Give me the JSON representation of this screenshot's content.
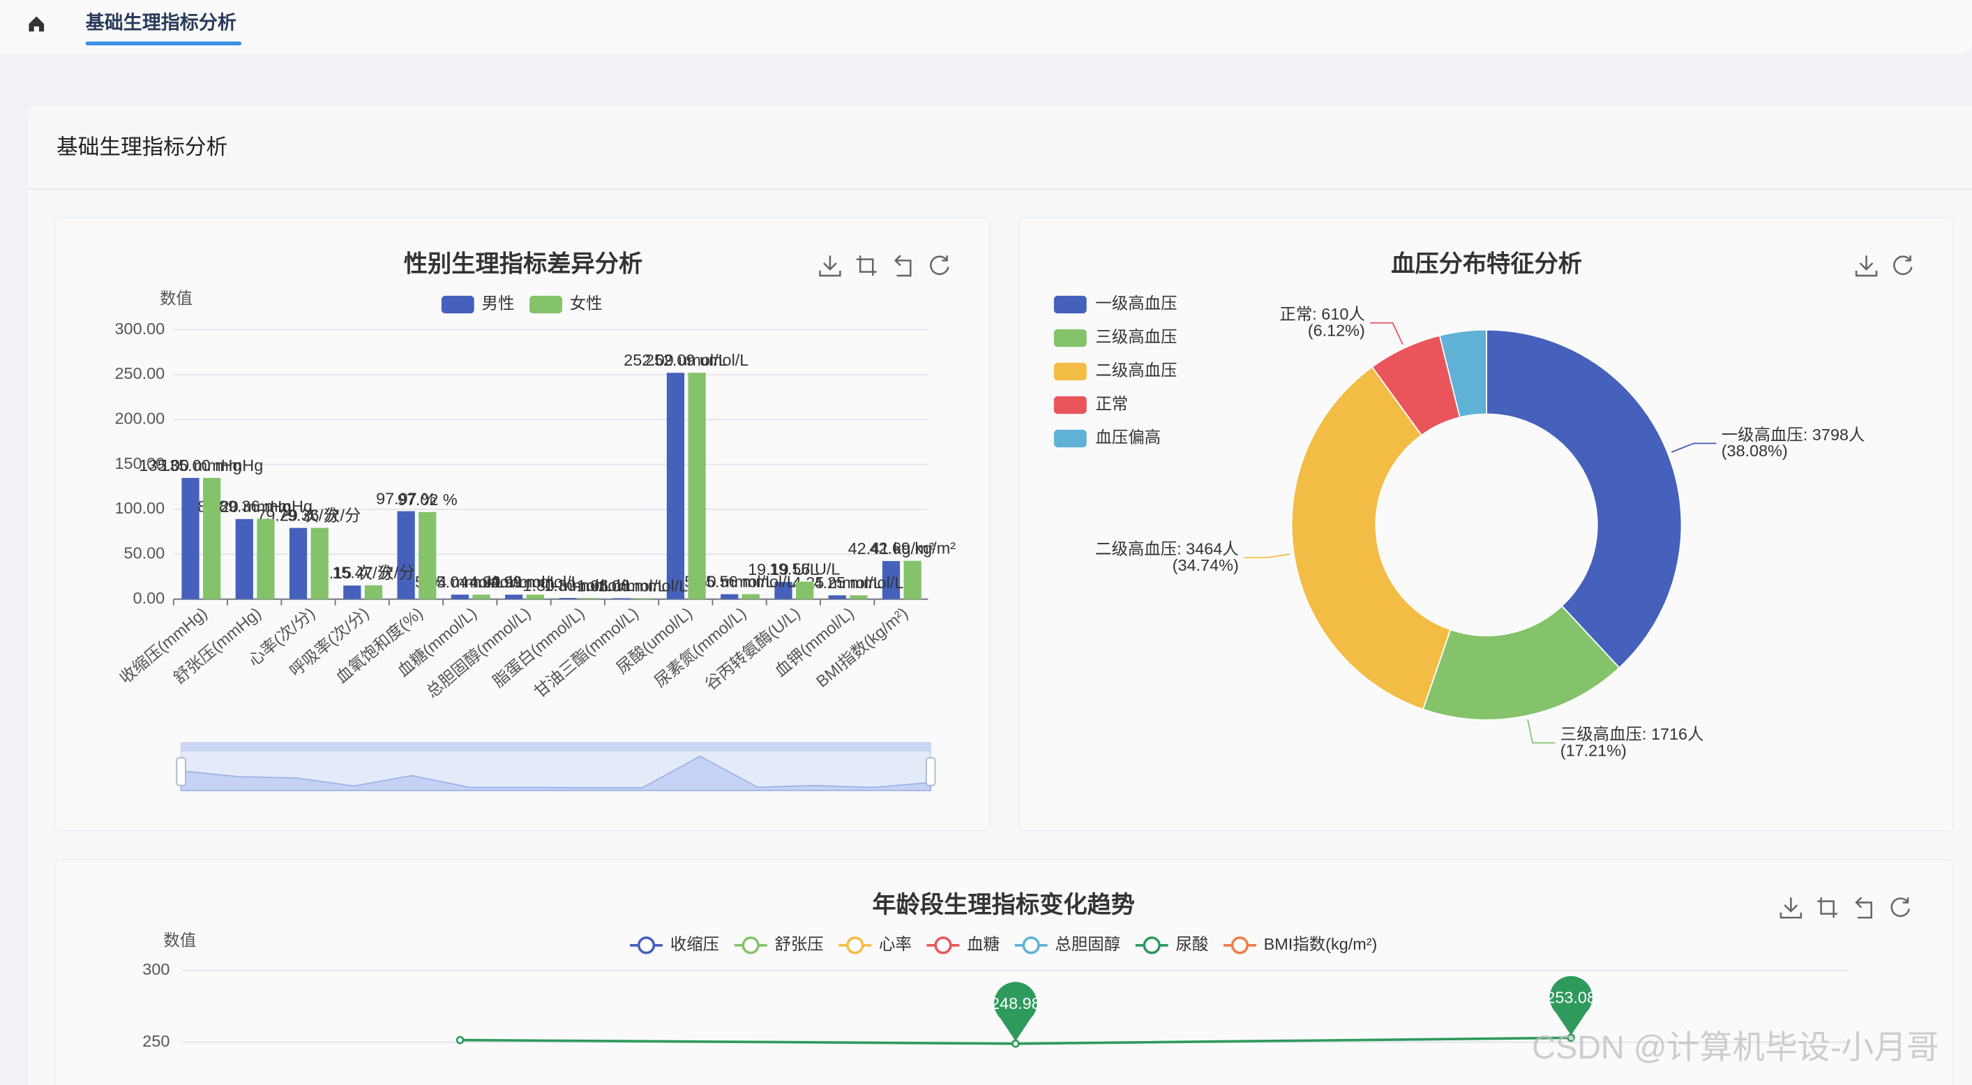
{
  "breadcrumb": "基础生理指标分析",
  "panel_title": "基础生理指标分析",
  "watermark": "CSDN @计算机毕设-小月哥",
  "chart_data": [
    {
      "type": "bar",
      "title": "性别生理指标差异分析",
      "y_axis_label": "数值",
      "categories": [
        "收缩压(mmHg)",
        "舒张压(mmHg)",
        "心率(次/分)",
        "呼吸率(次/分)",
        "血氧饱和度(%)",
        "血糖(mmol/L)",
        "总胆固醇(mmol/L)",
        "脂蛋白(mmol/L)",
        "甘油三酯(mmol/L)",
        "尿酸(umol/L)",
        "尿素氮(mmol/L)",
        "谷丙转氨酶(U/L)",
        "血钾(mmol/L)",
        "BMI指数(kg/m²)"
      ],
      "series": [
        {
          "name": "男性",
          "color": "#4561bb",
          "values": [
            135,
            89.2,
            79.29,
            15.15,
            97.97,
            5.04,
            4.99,
            1.3,
            1.06,
            252.09,
            5.5,
            19.19,
            4.25,
            42.41
          ],
          "value_labels": [
            "135.00 mmHg",
            "89.20 mmHg",
            "79.29 次/分",
            "15.15 次/分",
            "97.97 %",
            "5.04 mmol/L",
            "4.99 mmol/L",
            "1.30 mmol/L",
            "1.06 mmol/L",
            "252.09 umol/L",
            "5.50 mmol/L",
            "19.19 U/L",
            "4.25 mmol/L",
            "42.41 kg/m²"
          ]
        },
        {
          "name": "女性",
          "color": "#84c36a",
          "values": [
            135,
            89.36,
            79.36,
            15.47,
            97.02,
            5.04,
            4.99,
            1.3,
            1.06,
            252.09,
            5.56,
            19.56,
            4.25,
            42.69
          ],
          "value_labels": [
            "135.00 mmHg",
            "89.36 mmHg",
            "79.36 次/分",
            "15.47 次/分",
            "97.02 %",
            "5.04 mmol/L",
            "4.99 mmol/L",
            "1.30 mmol/L",
            "1.06 mmol/L",
            "252.09 umol/L",
            "5.56 mmol/L",
            "19.56 U/L",
            "4.25 mmol/L",
            "42.69 kg/m²"
          ]
        }
      ],
      "ylim": [
        0,
        300
      ],
      "yticks": [
        {
          "value": 0,
          "label": "0.00"
        },
        {
          "value": 50,
          "label": "50.00"
        },
        {
          "value": 100,
          "label": "100.00"
        },
        {
          "value": 150,
          "label": "150.00"
        },
        {
          "value": 200,
          "label": "200.00"
        },
        {
          "value": 250,
          "label": "250.00"
        },
        {
          "value": 300,
          "label": "300.00"
        }
      ],
      "grid": true,
      "legend": "top"
    },
    {
      "type": "pie",
      "title": "血压分布特征分析",
      "categories": [
        "一级高血压",
        "三级高血压",
        "二级高血压",
        "正常",
        "血压偏高"
      ],
      "values": [
        3798,
        1716,
        3464,
        610,
        386
      ],
      "value_labels": [
        "一级高血压: 3798人",
        "三级高血压: 1716人",
        "二级高血压: 3464人",
        "正常: 610人",
        null
      ],
      "percent_labels": [
        "(38.08%)",
        "(17.21%)",
        "(34.74%)",
        "(6.12%)",
        null
      ],
      "colors": [
        "#4561bb",
        "#84c36a",
        "#f3bc45",
        "#e9555a",
        "#5fb1d6"
      ],
      "legend": "left",
      "donut": true
    },
    {
      "type": "line",
      "title": "年龄段生理指标变化趋势",
      "y_axis_label": "数值",
      "categories": [
        null,
        null,
        null
      ],
      "series": [
        {
          "name": "收缩压",
          "color": "#4561bb",
          "values": [
            null,
            null,
            null
          ]
        },
        {
          "name": "舒张压",
          "color": "#84c36a",
          "values": [
            null,
            null,
            null
          ]
        },
        {
          "name": "心率",
          "color": "#f3bc45",
          "values": [
            null,
            null,
            null
          ]
        },
        {
          "name": "血糖",
          "color": "#e9555a",
          "values": [
            null,
            null,
            null
          ]
        },
        {
          "name": "总胆固醇",
          "color": "#5fb1d6",
          "values": [
            null,
            null,
            null
          ]
        },
        {
          "name": "尿酸",
          "color": "#2e9a5c",
          "values": [
            251.5,
            248.98,
            253.08
          ],
          "pins": [
            false,
            true,
            true
          ]
        },
        {
          "name": "BMI指数(kg/m²)",
          "color": "#f07c48",
          "values": [
            null,
            null,
            null
          ]
        }
      ],
      "ylim": [
        0,
        300
      ],
      "yticks": [
        250,
        300
      ],
      "grid": true,
      "legend": "top"
    }
  ]
}
